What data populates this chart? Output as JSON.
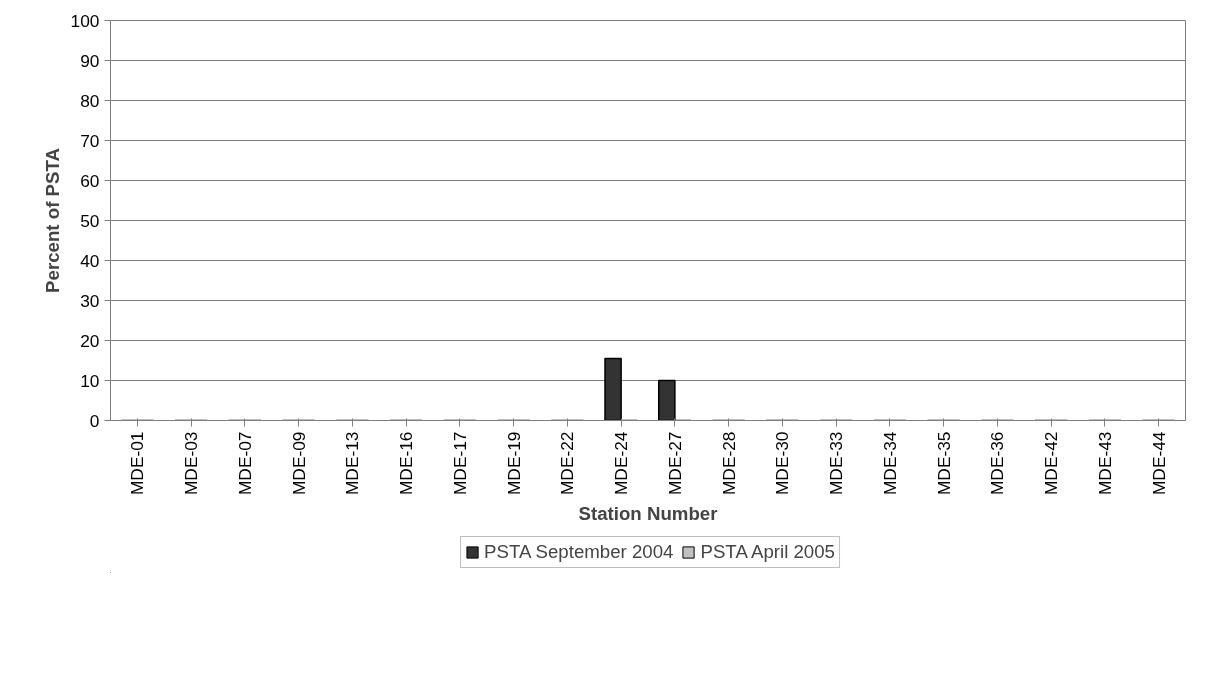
{
  "chart_data": {
    "type": "bar",
    "xlabel": "Station Number",
    "ylabel": "Percent of PSTA",
    "categories": [
      "MDE-01",
      "MDE-03",
      "MDE-07",
      "MDE-09",
      "MDE-13",
      "MDE-16",
      "MDE-17",
      "MDE-19",
      "MDE-22",
      "MDE-24",
      "MDE-27",
      "MDE-28",
      "MDE-30",
      "MDE-33",
      "MDE-34",
      "MDE-35",
      "MDE-36",
      "MDE-42",
      "MDE-43",
      "MDE-44"
    ],
    "series": [
      {
        "name": "PSTA September 2004",
        "color": "#333333",
        "values": [
          0,
          0,
          0,
          0,
          0,
          0,
          0,
          0,
          0,
          15.5,
          10,
          0,
          0,
          0,
          0,
          0,
          0,
          0,
          0,
          0
        ]
      },
      {
        "name": "PSTA April 2005",
        "color": "#c0c0c0",
        "values": [
          0,
          0,
          0,
          0,
          0,
          0,
          0,
          0,
          0,
          0,
          0,
          0,
          0,
          0,
          0,
          0,
          0,
          0,
          0,
          0
        ]
      }
    ],
    "ylim": [
      0,
      100
    ],
    "yticks": [
      0,
      10,
      20,
      30,
      40,
      50,
      60,
      70,
      80,
      90,
      100
    ],
    "grid": "y",
    "legend": "bottom"
  }
}
